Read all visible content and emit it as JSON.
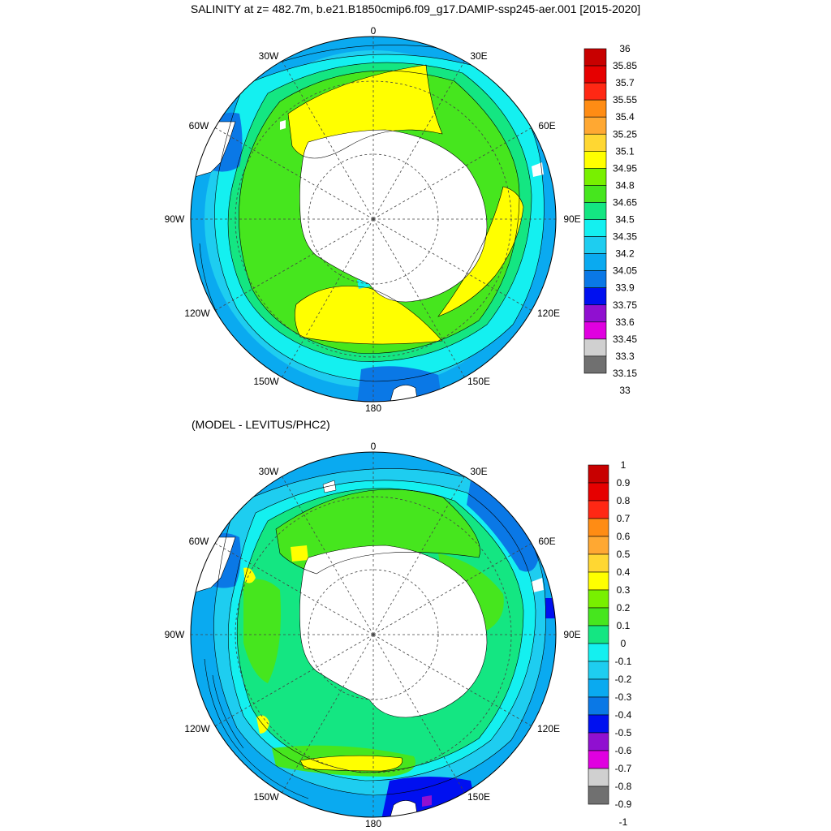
{
  "title": "SALINITY at z= 482.7m, b.e21.B1850cmip6.f09_g17.DAMIP-ssp245-aer.001 [2015-2020]",
  "subtitle": "(MODEL - LEVITUS/PHC2)",
  "longitude_labels": [
    "0",
    "30E",
    "60E",
    "90E",
    "120E",
    "150E",
    "180",
    "150W",
    "120W",
    "90W",
    "60W",
    "30W"
  ],
  "colors": {
    "land": "#ffffff",
    "palette": [
      "#707070",
      "#d0d0d0",
      "#e000e0",
      "#9010d0",
      "#0010f0",
      "#0a78e6",
      "#0aaaf0",
      "#1ecdf0",
      "#14f0f0",
      "#14e682",
      "#46e61e",
      "#78f000",
      "#ffff00",
      "#ffd732",
      "#ffa832",
      "#ff8c14",
      "#ff2814",
      "#e60000",
      "#c80000"
    ]
  },
  "colorbars": [
    {
      "name": "salinity",
      "labels": [
        "36",
        "35.85",
        "35.7",
        "35.55",
        "35.4",
        "35.25",
        "35.1",
        "34.95",
        "34.8",
        "34.65",
        "34.5",
        "34.35",
        "34.2",
        "34.05",
        "33.9",
        "33.75",
        "33.6",
        "33.45",
        "33.3",
        "33.15",
        "33"
      ]
    },
    {
      "name": "difference",
      "labels": [
        "1",
        "0.9",
        "0.8",
        "0.7",
        "0.6",
        "0.5",
        "0.4",
        "0.3",
        "0.2",
        "0.1",
        "0",
        "-0.1",
        "-0.2",
        "-0.3",
        "-0.4",
        "-0.5",
        "-0.6",
        "-0.7",
        "-0.8",
        "-0.9",
        "-1"
      ]
    }
  ]
}
